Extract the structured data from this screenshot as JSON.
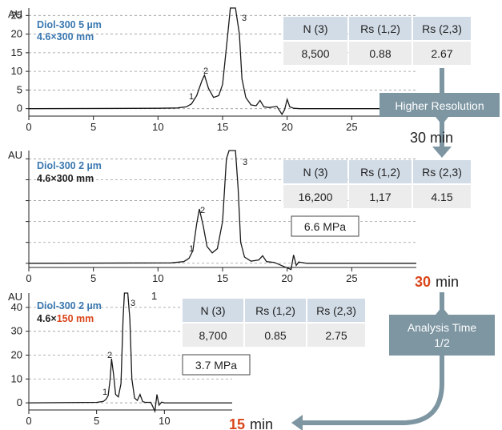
{
  "chart_data": [
    {
      "type": "line",
      "column": {
        "line1_name": "Diol-300",
        "line1_size": "5 µm",
        "line2": "4.6×300 mm"
      },
      "ylabel": "AU",
      "yticks": [
        "25",
        "20",
        "15",
        "10",
        "5",
        "0"
      ],
      "ylim": [
        -2,
        27
      ],
      "xticks": [
        "0",
        "5",
        "10",
        "15",
        "20",
        "25"
      ],
      "xlim": [
        0,
        30
      ],
      "peak_labels": [
        "1",
        "2",
        "3"
      ],
      "table": {
        "headers": [
          "N (3)",
          "Rs (1,2)",
          "Rs (2,3)"
        ],
        "values": [
          "8,500",
          "0.88",
          "2.67"
        ]
      },
      "series": [
        {
          "x": [
            0,
            10,
            11.5,
            12.2,
            12.6,
            13.0,
            13.4,
            13.6,
            13.9,
            14.3,
            14.7,
            15.0,
            15.4,
            15.6,
            15.8,
            16.0,
            16.3,
            16.5,
            16.8,
            17.2,
            17.6,
            17.9,
            18.2,
            18.6,
            19.2,
            19.6,
            19.8,
            20.0,
            20.2,
            20.5,
            21,
            25,
            30
          ],
          "y": [
            0,
            0.1,
            0.2,
            0.5,
            1.3,
            3.5,
            7.5,
            9.0,
            5.5,
            3.0,
            3.5,
            6.5,
            20,
            27,
            27,
            27,
            20,
            8,
            3,
            1,
            0.8,
            2.2,
            0.5,
            0.3,
            0.6,
            -1.5,
            -0.3,
            2.5,
            0.5,
            0.1,
            0,
            0,
            0
          ]
        }
      ]
    },
    {
      "type": "line",
      "column": {
        "line1_name": "Diol-300",
        "line1_size": "2 µm",
        "line2": "4.6×300 mm"
      },
      "ylabel": "AU",
      "ylim": [
        -1,
        27
      ],
      "xticks": [
        "0",
        "5",
        "10",
        "15",
        "20",
        "25"
      ],
      "xlim": [
        0,
        30
      ],
      "peak_labels": [
        "1",
        "2",
        "3"
      ],
      "table": {
        "headers": [
          "N (3)",
          "Rs (1,2)",
          "Rs (2,3)"
        ],
        "values": [
          "16,200",
          "1,17",
          "4.15"
        ]
      },
      "pressure": "6.6 MPa",
      "series": [
        {
          "x": [
            0,
            11,
            12.0,
            12.4,
            12.7,
            13.0,
            13.2,
            13.5,
            13.8,
            14.2,
            14.6,
            15.0,
            15.3,
            15.5,
            15.7,
            16.0,
            16.2,
            16.4,
            16.7,
            17.2,
            17.8,
            18.1,
            18.4,
            19,
            20.3,
            20.5,
            20.7,
            20.9,
            21.5,
            30
          ],
          "y": [
            0,
            0.1,
            0.4,
            1.2,
            3.0,
            9.5,
            13.0,
            9.0,
            4.0,
            2.5,
            3.5,
            10,
            25,
            27,
            27,
            27,
            18,
            5,
            1.5,
            0.5,
            0.8,
            1.8,
            0.4,
            0.2,
            -1.5,
            2.0,
            -0.5,
            0.3,
            0,
            0
          ]
        }
      ]
    },
    {
      "type": "line",
      "column": {
        "line1_name": "Diol-300",
        "line1_size": "2 µm",
        "line2_prefix": "4.6×",
        "line2_length": "150 mm"
      },
      "ylabel": "AU",
      "yticks": [
        "40",
        "30",
        "20",
        "10",
        "0"
      ],
      "ylim": [
        -3,
        46
      ],
      "xticks": [
        "0",
        "5",
        "10"
      ],
      "xlim": [
        0,
        15
      ],
      "peak_labels": [
        "1",
        "2",
        "3"
      ],
      "stray_label": "1",
      "table": {
        "headers": [
          "N (3)",
          "Rs (1,2)",
          "Rs (2,3)"
        ],
        "values": [
          "8,700",
          "0.85",
          "2.75"
        ]
      },
      "pressure": "3.7 MPa",
      "series": [
        {
          "x": [
            0,
            5,
            5.5,
            5.7,
            5.85,
            6.0,
            6.1,
            6.25,
            6.4,
            6.6,
            6.8,
            6.95,
            7.05,
            7.15,
            7.3,
            7.45,
            7.6,
            7.8,
            8.0,
            8.2,
            8.4,
            8.6,
            9.0,
            9.3,
            9.45,
            9.6,
            9.8,
            10,
            15
          ],
          "y": [
            0,
            0.2,
            0.6,
            1.5,
            3.0,
            10,
            18.5,
            12,
            3.5,
            2.5,
            8,
            35,
            46,
            46,
            46,
            35,
            10,
            2,
            1.0,
            3.5,
            0.5,
            0.2,
            0.2,
            -3.5,
            3.5,
            -1,
            0.3,
            0,
            0
          ]
        }
      ]
    }
  ],
  "annotations": {
    "higher_resolution": "Higher Resolution",
    "analysis_time_line1": "Analysis Time",
    "analysis_time_line2": "1/2",
    "time1_value": "30",
    "time1_unit": "min",
    "time2_value": "30",
    "time2_unit": "min",
    "time3_value": "15",
    "time3_unit": "min"
  },
  "colors": {
    "blue_label": "#3a78b0",
    "red_accent": "#d9461a",
    "callout": "#7d96a2",
    "table_header": "#d2dce6",
    "table_body": "#ececec"
  }
}
